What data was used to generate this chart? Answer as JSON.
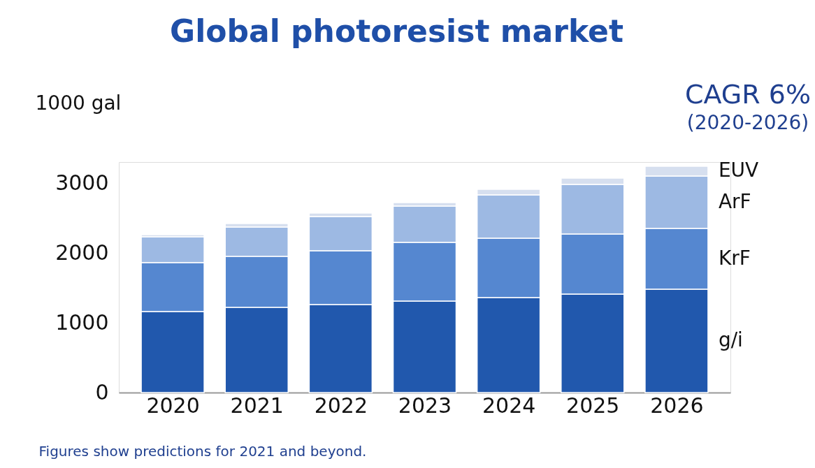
{
  "chart_data": {
    "type": "bar",
    "title": "Global photoresist market",
    "ylabel": "1000 gal",
    "categories": [
      "2020",
      "2021",
      "2022",
      "2023",
      "2024",
      "2025",
      "2026"
    ],
    "stacked": true,
    "series": [
      {
        "name": "g/i",
        "color": "#2158ad",
        "values": [
          1160,
          1220,
          1260,
          1310,
          1360,
          1410,
          1480
        ]
      },
      {
        "name": "KrF",
        "color": "#5587d0",
        "values": [
          700,
          730,
          770,
          840,
          850,
          860,
          870
        ]
      },
      {
        "name": "ArF",
        "color": "#9db9e3",
        "values": [
          370,
          420,
          490,
          520,
          620,
          710,
          750
        ]
      },
      {
        "name": "EUV",
        "color": "#d6dfef",
        "values": [
          30,
          50,
          50,
          50,
          80,
          90,
          140
        ]
      }
    ],
    "ylim": [
      0,
      3300
    ],
    "yticks": [
      0,
      1000,
      2000,
      3000
    ],
    "grid": false,
    "annotations": [
      "CAGR 6%",
      "(2020-2026)",
      "Figures show predictions for 2021 and beyond."
    ]
  }
}
